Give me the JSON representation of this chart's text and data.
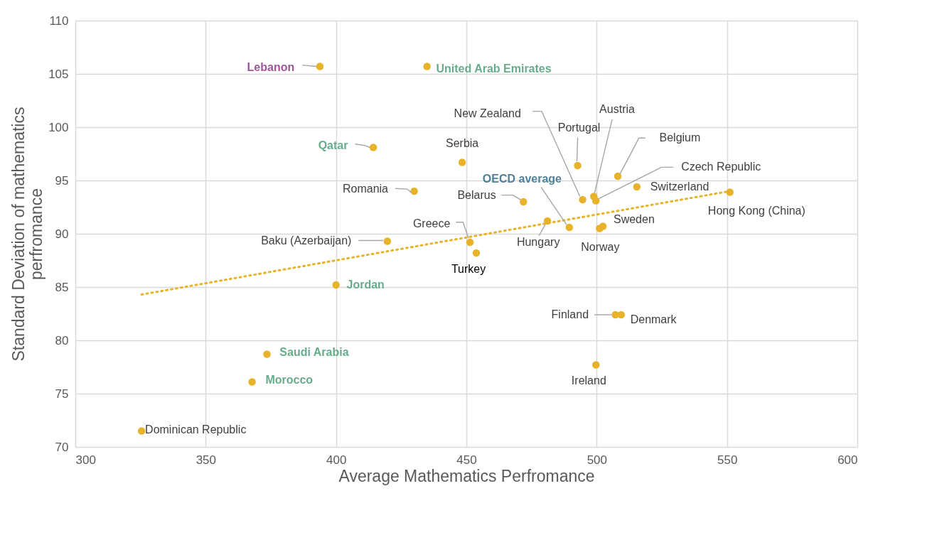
{
  "chart_data": {
    "type": "scatter",
    "xlabel": "Average Mathematics Perfromance",
    "ylabel": "Standard Deviation of mathematics perfromance",
    "xlim": [
      300,
      600
    ],
    "xticks": [
      300,
      350,
      400,
      450,
      500,
      550,
      600
    ],
    "ylim": [
      70,
      110
    ],
    "yticks": [
      70,
      75,
      80,
      85,
      90,
      95,
      100,
      105,
      110
    ],
    "grid": true,
    "marker": "circle",
    "series": [
      {
        "color": "#e6b32a",
        "x": [
          325.4,
          367.8,
          373.5,
          400.0,
          393.8,
          434.9,
          414.3,
          430.0,
          419.7,
          448.4,
          451.4,
          453.8,
          471.9,
          481.1,
          489.5,
          492.7,
          494.6,
          498.9,
          499.7,
          508.1,
          515.4,
          551.1,
          501.1,
          502.4,
          507.2,
          509.4,
          499.7
        ],
        "values": [
          71.5,
          76.1,
          78.7,
          85.2,
          105.7,
          105.7,
          98.1,
          94.0,
          89.3,
          96.7,
          89.2,
          88.2,
          93.0,
          91.2,
          90.6,
          96.4,
          93.2,
          93.5,
          93.1,
          95.4,
          94.4,
          93.9,
          90.5,
          90.7,
          82.4,
          82.4,
          77.7
        ]
      },
      {
        "type": "line",
        "color": "#e6b32a",
        "line_style": "dotted",
        "marker": "none",
        "x": [
          325.4,
          551.1
        ],
        "values": [
          84.3,
          94.0
        ]
      }
    ],
    "annotations": [
      {
        "text": "Dominican Republic",
        "x": 325.4,
        "y": 71.5
      },
      {
        "text": "Morocco",
        "x": 367.8,
        "y": 76.1
      },
      {
        "text": "Saudi Arabia",
        "x": 373.5,
        "y": 78.7
      },
      {
        "text": "Jordan",
        "x": 400.0,
        "y": 85.2
      },
      {
        "text": "Lebanon",
        "x": 393.8,
        "y": 105.7
      },
      {
        "text": "United Arab Emirates",
        "x": 434.9,
        "y": 105.7
      },
      {
        "text": "Qatar",
        "x": 414.3,
        "y": 98.1
      },
      {
        "text": "Romania",
        "x": 430.0,
        "y": 94.0
      },
      {
        "text": "Baku (Azerbaijan)",
        "x": 419.7,
        "y": 89.3
      },
      {
        "text": "Serbia",
        "x": 448.4,
        "y": 96.7
      },
      {
        "text": "Greece",
        "x": 451.4,
        "y": 89.2
      },
      {
        "text": "Turkey",
        "x": 453.8,
        "y": 88.2
      },
      {
        "text": "Belarus",
        "x": 471.9,
        "y": 93.0
      },
      {
        "text": "Hungary",
        "x": 481.1,
        "y": 91.2
      },
      {
        "text": "OECD average",
        "x": 489.5,
        "y": 90.6
      },
      {
        "text": "Portugal",
        "x": 492.7,
        "y": 96.4
      },
      {
        "text": "New Zealand",
        "x": 494.6,
        "y": 93.2
      },
      {
        "text": "Austria",
        "x": 498.9,
        "y": 93.5
      },
      {
        "text": "Czech Republic",
        "x": 499.7,
        "y": 93.1
      },
      {
        "text": "Belgium",
        "x": 508.1,
        "y": 95.4
      },
      {
        "text": "Switzerland",
        "x": 515.4,
        "y": 94.4
      },
      {
        "text": "Hong Kong (China)",
        "x": 551.1,
        "y": 93.9
      },
      {
        "text": "Norway",
        "x": 501.1,
        "y": 90.5
      },
      {
        "text": "Sweden",
        "x": 502.4,
        "y": 90.7
      },
      {
        "text": "Finland",
        "x": 507.2,
        "y": 82.4
      },
      {
        "text": "Denmark",
        "x": 509.4,
        "y": 82.4
      },
      {
        "text": "Ireland",
        "x": 499.7,
        "y": 77.7
      }
    ]
  }
}
